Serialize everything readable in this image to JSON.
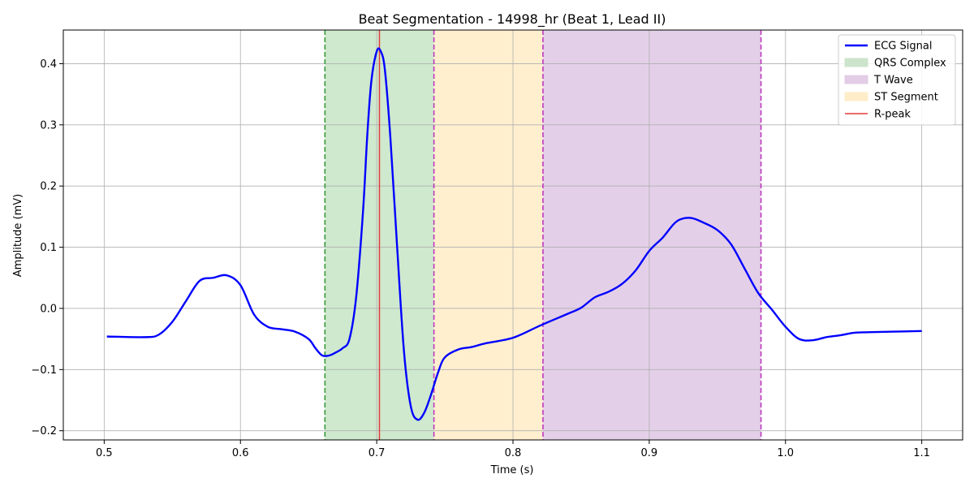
{
  "chart_data": {
    "type": "line",
    "title": "Beat Segmentation - 14998_hr (Beat 1, Lead II)",
    "xlabel": "Time (s)",
    "ylabel": "Amplitude (mV)",
    "xlim": [
      0.47,
      1.13
    ],
    "ylim": [
      -0.215,
      0.455
    ],
    "xticks": [
      0.5,
      0.6,
      0.7,
      0.8,
      0.9,
      1.0,
      1.1
    ],
    "xtick_labels": [
      "0.5",
      "0.6",
      "0.7",
      "0.8",
      "0.9",
      "1.0",
      "1.1"
    ],
    "yticks": [
      -0.2,
      -0.1,
      0.0,
      0.1,
      0.2,
      0.3,
      0.4
    ],
    "ytick_labels": [
      "−0.2",
      "−0.1",
      "0.0",
      "0.1",
      "0.2",
      "0.3",
      "0.4"
    ],
    "grid": true,
    "legend_position": "top-right",
    "series": [
      {
        "name": "ECG Signal",
        "color": "#0000ff",
        "x": [
          0.502,
          0.53,
          0.54,
          0.55,
          0.56,
          0.57,
          0.58,
          0.59,
          0.6,
          0.61,
          0.62,
          0.63,
          0.64,
          0.65,
          0.655,
          0.66,
          0.665,
          0.67,
          0.675,
          0.68,
          0.685,
          0.69,
          0.693,
          0.696,
          0.7,
          0.703,
          0.706,
          0.71,
          0.715,
          0.72,
          0.725,
          0.73,
          0.735,
          0.74,
          0.745,
          0.75,
          0.76,
          0.77,
          0.78,
          0.8,
          0.82,
          0.84,
          0.85,
          0.86,
          0.87,
          0.88,
          0.89,
          0.9,
          0.91,
          0.92,
          0.93,
          0.94,
          0.95,
          0.96,
          0.97,
          0.98,
          0.99,
          1.0,
          1.01,
          1.02,
          1.03,
          1.04,
          1.05,
          1.06,
          1.08,
          1.1
        ],
        "y": [
          -0.046,
          -0.047,
          -0.043,
          -0.022,
          0.012,
          0.045,
          0.05,
          0.054,
          0.038,
          -0.01,
          -0.03,
          -0.034,
          -0.038,
          -0.05,
          -0.065,
          -0.077,
          -0.077,
          -0.072,
          -0.065,
          -0.05,
          0.02,
          0.16,
          0.28,
          0.37,
          0.42,
          0.42,
          0.39,
          0.28,
          0.1,
          -0.07,
          -0.16,
          -0.182,
          -0.17,
          -0.14,
          -0.105,
          -0.08,
          -0.067,
          -0.063,
          -0.057,
          -0.048,
          -0.028,
          -0.009,
          0.001,
          0.018,
          0.027,
          0.04,
          0.062,
          0.094,
          0.116,
          0.142,
          0.148,
          0.14,
          0.128,
          0.105,
          0.065,
          0.025,
          -0.002,
          -0.03,
          -0.05,
          -0.052,
          -0.047,
          -0.044,
          -0.04,
          -0.039,
          -0.038,
          -0.037
        ]
      }
    ],
    "regions": [
      {
        "name": "QRS Complex",
        "start": 0.662,
        "end": 0.742,
        "fill": "#2ca02c",
        "opacity": 0.23,
        "edge_color": "#3a9a3a"
      },
      {
        "name": "ST Segment",
        "start": 0.742,
        "end": 0.822,
        "fill": "#ffbf40",
        "opacity": 0.25,
        "edge_color": "#c037c0"
      },
      {
        "name": "T Wave",
        "start": 0.822,
        "end": 0.982,
        "fill": "#9b4fab",
        "opacity": 0.27,
        "edge_color": "#c037c0"
      }
    ],
    "r_peak": {
      "name": "R-peak",
      "x": 0.702,
      "color": "#e33b3b"
    },
    "legend": [
      {
        "label": "ECG Signal",
        "kind": "line",
        "color": "#0000ff"
      },
      {
        "label": "QRS Complex",
        "kind": "patch",
        "color": "#cbe4cb"
      },
      {
        "label": "T Wave",
        "kind": "patch",
        "color": "#e3cce6"
      },
      {
        "label": "ST Segment",
        "kind": "patch",
        "color": "#ffecc9"
      },
      {
        "label": "R-peak",
        "kind": "line",
        "color": "#e33b3b"
      }
    ]
  }
}
